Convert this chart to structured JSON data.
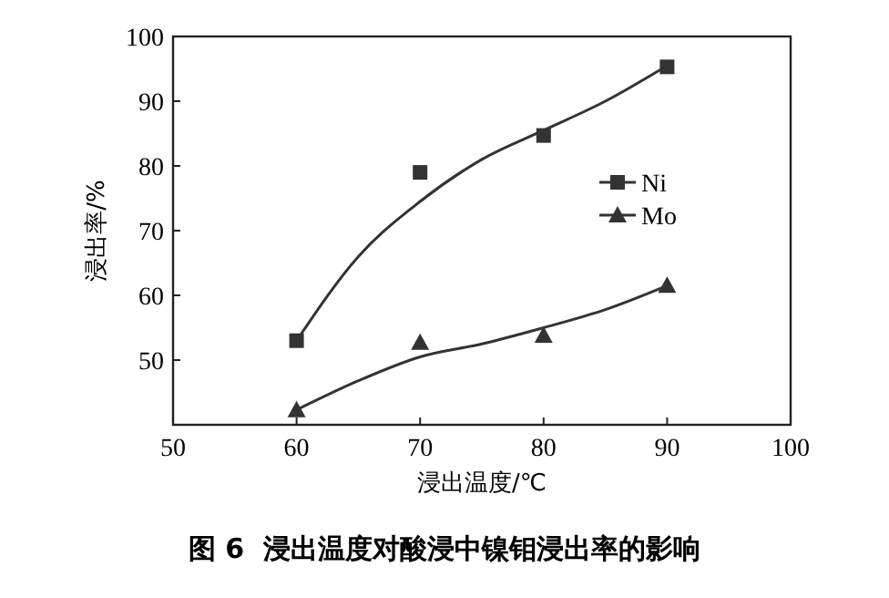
{
  "chart_data": {
    "type": "scatter",
    "xlabel": "浸出温度/℃",
    "ylabel": "浸出率/%",
    "xlim": [
      50,
      100
    ],
    "xticks": [
      50,
      60,
      70,
      80,
      90,
      100
    ],
    "ylim": [
      40,
      100
    ],
    "yticks": [
      {
        "value": 40,
        "label": null
      },
      50,
      60,
      70,
      80,
      90,
      100
    ],
    "legend": "right",
    "annotations": [
      "图 6  浸出温度对酸浸中镍钼浸出率的影响"
    ],
    "series": [
      {
        "name": "Ni",
        "marker": "square",
        "color": "#333333",
        "x": [
          60,
          70,
          80,
          90
        ],
        "values": [
          53,
          79,
          84.7,
          95.3
        ]
      },
      {
        "name": "Mo",
        "marker": "triangle",
        "color": "#333333",
        "x": [
          60,
          70,
          80,
          90
        ],
        "values": [
          42.3,
          52.7,
          53.8,
          61.5
        ]
      },
      {
        "type": "line",
        "marker": "none",
        "color": "#333333",
        "x": [
          60,
          65,
          70,
          75,
          80,
          85,
          90
        ],
        "values": [
          53,
          66,
          74.5,
          81,
          85.5,
          90,
          95.5
        ]
      },
      {
        "type": "line",
        "marker": "none",
        "color": "#333333",
        "x": [
          60,
          65,
          70,
          75,
          80,
          85,
          90
        ],
        "values": [
          42.3,
          46.8,
          50.5,
          52.5,
          55,
          57.8,
          61.5
        ]
      }
    ]
  }
}
